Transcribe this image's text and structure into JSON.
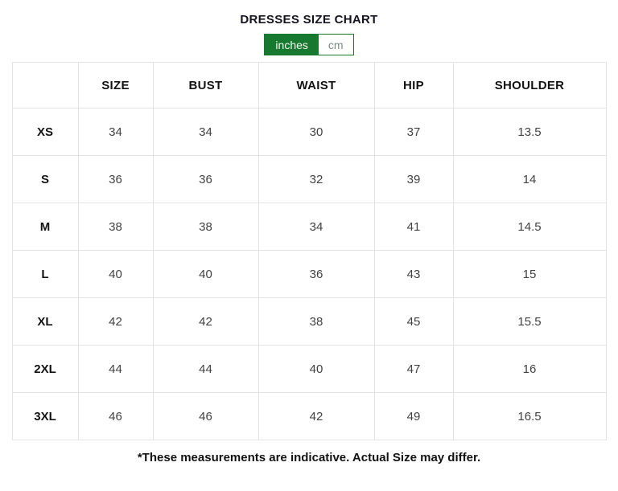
{
  "title": "DRESSES SIZE CHART",
  "unit_toggle": {
    "selected_unit": "inches",
    "options": [
      {
        "label": "inches",
        "selected": true
      },
      {
        "label": "cm",
        "selected": false
      }
    ]
  },
  "table": {
    "headers": [
      "SIZE",
      "BUST",
      "WAIST",
      "HIP",
      "SHOULDER"
    ],
    "rows": [
      {
        "label": "XS",
        "size": "34",
        "bust": "34",
        "waist": "30",
        "hip": "37",
        "shoulder": "13.5"
      },
      {
        "label": "S",
        "size": "36",
        "bust": "36",
        "waist": "32",
        "hip": "39",
        "shoulder": "14"
      },
      {
        "label": "M",
        "size": "38",
        "bust": "38",
        "waist": "34",
        "hip": "41",
        "shoulder": "14.5"
      },
      {
        "label": "L",
        "size": "40",
        "bust": "40",
        "waist": "36",
        "hip": "43",
        "shoulder": "15"
      },
      {
        "label": "XL",
        "size": "42",
        "bust": "42",
        "waist": "38",
        "hip": "45",
        "shoulder": "15.5"
      },
      {
        "label": "2XL",
        "size": "44",
        "bust": "44",
        "waist": "40",
        "hip": "47",
        "shoulder": "16"
      },
      {
        "label": "3XL",
        "size": "46",
        "bust": "46",
        "waist": "42",
        "hip": "49",
        "shoulder": "16.5"
      }
    ]
  },
  "footnote": "*These measurements are indicative. Actual Size may differ.",
  "colors": {
    "accent_green": "#16792f",
    "table_border": "#e3e3e3",
    "header_text": "#131313",
    "cell_text": "#424242",
    "cm_text": "#7b8a80"
  }
}
